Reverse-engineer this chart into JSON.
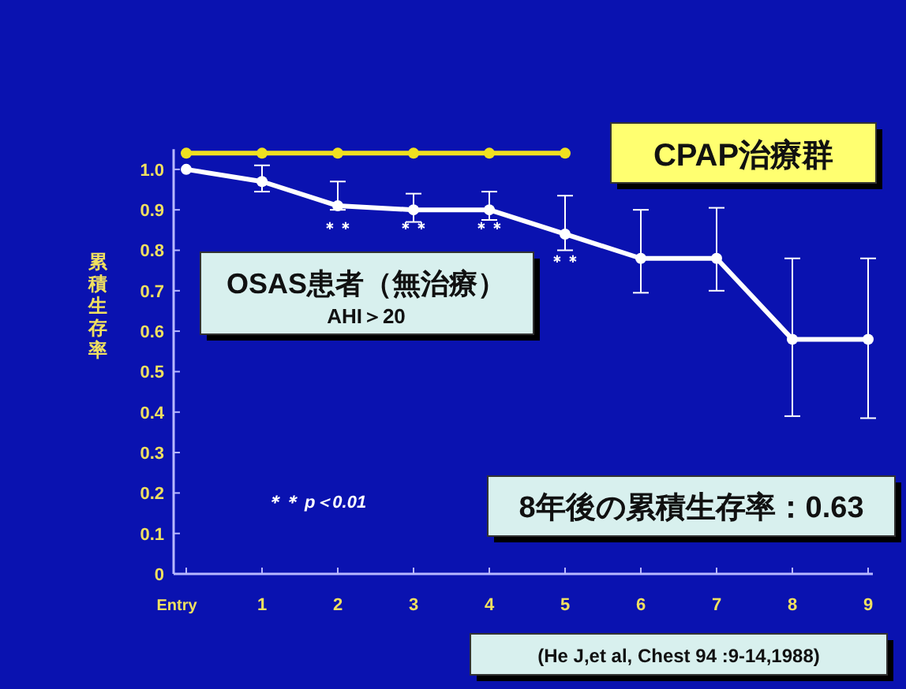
{
  "chart_data": {
    "type": "line",
    "ylabel": "累積生存率",
    "categories": [
      "Entry",
      "1",
      "2",
      "3",
      "4",
      "5",
      "6",
      "7",
      "8",
      "9"
    ],
    "series": [
      {
        "name": "CPAP治療群",
        "color": "#f0e020",
        "values": [
          1.04,
          1.04,
          1.04,
          1.04,
          1.04,
          1.04,
          null,
          null,
          null,
          null
        ]
      },
      {
        "name": "OSAS患者（無治療）",
        "color": "#ffffff",
        "values": [
          1.0,
          0.97,
          0.91,
          0.9,
          0.9,
          0.84,
          0.78,
          0.78,
          0.58,
          0.58
        ],
        "errors": [
          null,
          [
            0.945,
            1.01
          ],
          [
            0.9,
            0.97
          ],
          [
            0.87,
            0.94
          ],
          [
            0.875,
            0.945
          ],
          [
            0.8,
            0.935
          ],
          [
            0.695,
            0.9
          ],
          [
            0.7,
            0.905
          ],
          [
            0.39,
            0.78
          ],
          [
            0.385,
            0.78
          ]
        ]
      }
    ],
    "ylim": [
      0,
      1.05
    ],
    "yticks": [
      0,
      0.1,
      0.2,
      0.3,
      0.4,
      0.5,
      0.6,
      0.7,
      0.8,
      0.9,
      {
        "value": 1.0,
        "label": "1.0"
      }
    ],
    "marker": "circle",
    "line_style": "solid",
    "legend": false,
    "grid": false,
    "annotations": [
      "AHI＞20",
      "＊＊ p＜0.01",
      "8年後の累積生存率：0.63",
      "(He J,et al, Chest 94 :9-14,1988)",
      "＊＊",
      "＊＊",
      "＊＊",
      "＊＊"
    ]
  }
}
